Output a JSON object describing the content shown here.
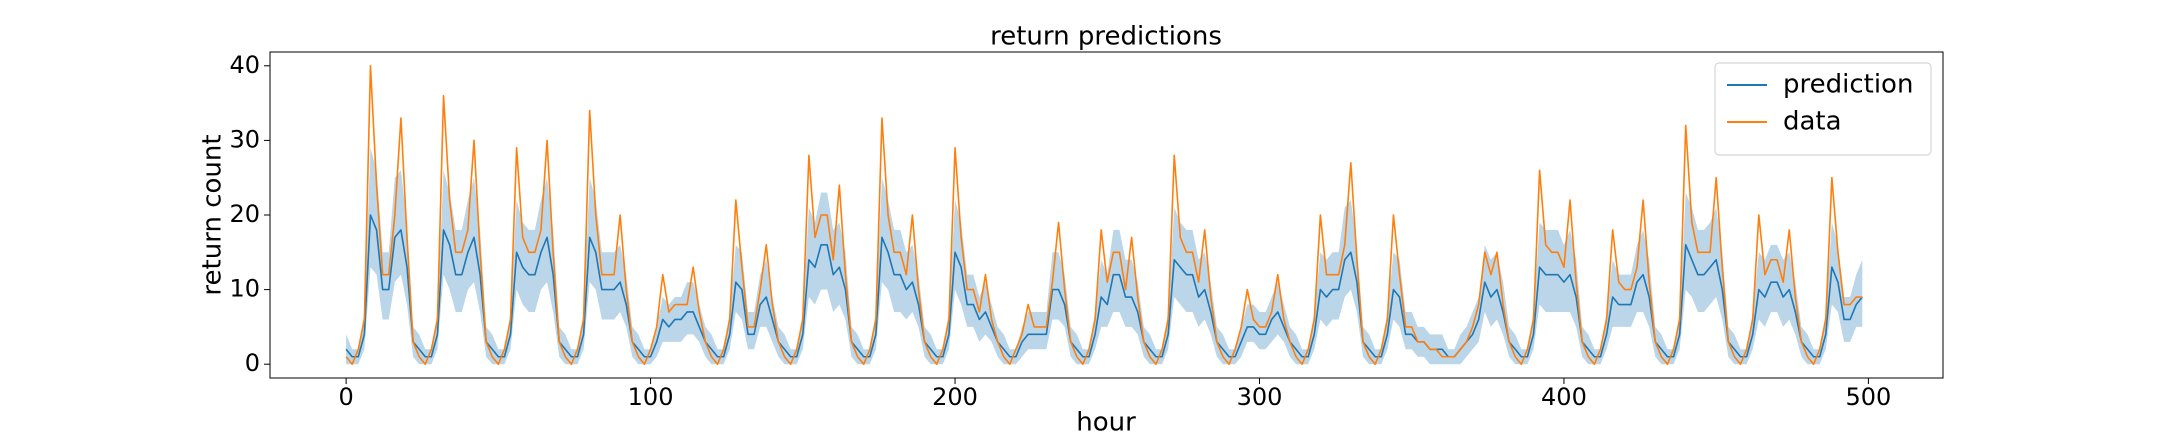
{
  "chart_data": {
    "type": "line",
    "title": "return predictions",
    "xlabel": "hour",
    "ylabel": "return count",
    "xlim": [
      -25,
      524.5
    ],
    "ylim": [
      -1.85,
      41.85
    ],
    "xticks": [
      0,
      100,
      200,
      300,
      400,
      500
    ],
    "yticks": [
      0,
      10,
      20,
      30,
      40
    ],
    "legend": "upper right",
    "x": [
      0,
      2,
      4,
      6,
      8,
      10,
      12,
      14,
      16,
      18,
      20,
      22,
      24,
      26,
      28,
      30,
      32,
      34,
      36,
      38,
      40,
      42,
      44,
      46,
      48,
      50,
      52,
      54,
      56,
      58,
      60,
      62,
      64,
      66,
      68,
      70,
      72,
      74,
      76,
      78,
      80,
      82,
      84,
      86,
      88,
      90,
      92,
      94,
      96,
      98,
      100,
      102,
      104,
      106,
      108,
      110,
      112,
      114,
      116,
      118,
      120,
      122,
      124,
      126,
      128,
      130,
      132,
      134,
      136,
      138,
      140,
      142,
      144,
      146,
      148,
      150,
      152,
      154,
      156,
      158,
      160,
      162,
      164,
      166,
      168,
      170,
      172,
      174,
      176,
      178,
      180,
      182,
      184,
      186,
      188,
      190,
      192,
      194,
      196,
      198,
      200,
      202,
      204,
      206,
      208,
      210,
      212,
      214,
      216,
      218,
      220,
      222,
      224,
      226,
      228,
      230,
      232,
      234,
      236,
      238,
      240,
      242,
      244,
      246,
      248,
      250,
      252,
      254,
      256,
      258,
      260,
      262,
      264,
      266,
      268,
      270,
      272,
      274,
      276,
      278,
      280,
      282,
      284,
      286,
      288,
      290,
      292,
      294,
      296,
      298,
      300,
      302,
      304,
      306,
      308,
      310,
      312,
      314,
      316,
      318,
      320,
      322,
      324,
      326,
      328,
      330,
      332,
      334,
      336,
      338,
      340,
      342,
      344,
      346,
      348,
      350,
      352,
      354,
      356,
      358,
      360,
      362,
      364,
      366,
      368,
      370,
      372,
      374,
      376,
      378,
      380,
      382,
      384,
      386,
      388,
      390,
      392,
      394,
      396,
      398,
      400,
      402,
      404,
      406,
      408,
      410,
      412,
      414,
      416,
      418,
      420,
      422,
      424,
      426,
      428,
      430,
      432,
      434,
      436,
      438,
      440,
      442,
      444,
      446,
      448,
      450,
      452,
      454,
      456,
      458,
      460,
      462,
      464,
      466,
      468,
      470,
      472,
      474,
      476,
      478,
      480,
      482,
      484,
      486,
      488,
      490,
      492,
      494,
      496,
      498
    ],
    "series": [
      {
        "name": "prediction",
        "color": "#1f77b4",
        "values": [
          2,
          1,
          1,
          4,
          20,
          18,
          10,
          10,
          17,
          18,
          13,
          3,
          2,
          1,
          1,
          4,
          18,
          16,
          12,
          12,
          15,
          17,
          12,
          3,
          2,
          1,
          1,
          4,
          15,
          13,
          12,
          12,
          15,
          17,
          12,
          3,
          2,
          1,
          1,
          4,
          17,
          15,
          10,
          10,
          10,
          11,
          8,
          3,
          2,
          1,
          1,
          3,
          6,
          5,
          6,
          6,
          7,
          7,
          5,
          3,
          2,
          1,
          1,
          4,
          11,
          10,
          4,
          4,
          8,
          9,
          6,
          3,
          2,
          1,
          1,
          4,
          14,
          13,
          16,
          16,
          12,
          13,
          10,
          3,
          2,
          1,
          1,
          4,
          17,
          15,
          12,
          12,
          10,
          11,
          8,
          3,
          2,
          1,
          1,
          4,
          15,
          13,
          8,
          8,
          6,
          7,
          5,
          3,
          2,
          1,
          1,
          3,
          4,
          4,
          4,
          4,
          10,
          10,
          8,
          3,
          2,
          1,
          1,
          4,
          9,
          8,
          12,
          12,
          9,
          9,
          7,
          3,
          2,
          1,
          1,
          4,
          14,
          13,
          12,
          12,
          9,
          10,
          7,
          3,
          2,
          1,
          1,
          3,
          5,
          5,
          4,
          4,
          6,
          7,
          5,
          3,
          2,
          1,
          1,
          4,
          10,
          9,
          10,
          10,
          14,
          15,
          11,
          3,
          2,
          1,
          1,
          4,
          10,
          9,
          4,
          4,
          3,
          3,
          2,
          2,
          2,
          1,
          1,
          2,
          3,
          4,
          6,
          11,
          9,
          10,
          7,
          3,
          2,
          1,
          1,
          4,
          13,
          12,
          12,
          12,
          11,
          12,
          9,
          3,
          2,
          1,
          1,
          4,
          9,
          8,
          8,
          8,
          11,
          12,
          9,
          3,
          2,
          1,
          1,
          4,
          16,
          14,
          12,
          12,
          13,
          14,
          10,
          3,
          2,
          1,
          1,
          4,
          10,
          9,
          11,
          11,
          9,
          10,
          7,
          3,
          2,
          1,
          1,
          4,
          13,
          11,
          6,
          6,
          8,
          9
        ]
      },
      {
        "name": "data",
        "color": "#ff7f0e",
        "values": [
          1,
          0,
          2,
          6,
          40,
          24,
          12,
          12,
          20,
          33,
          17,
          3,
          1,
          0,
          2,
          6,
          36,
          22,
          15,
          15,
          18,
          30,
          15,
          3,
          1,
          0,
          2,
          6,
          29,
          17,
          15,
          15,
          18,
          30,
          15,
          3,
          1,
          0,
          2,
          6,
          34,
          20,
          12,
          12,
          12,
          20,
          10,
          3,
          1,
          0,
          2,
          5,
          12,
          7,
          8,
          8,
          8,
          13,
          7,
          3,
          1,
          0,
          2,
          6,
          22,
          13,
          5,
          5,
          10,
          16,
          8,
          3,
          1,
          0,
          2,
          6,
          28,
          17,
          20,
          20,
          14,
          24,
          12,
          3,
          1,
          0,
          2,
          6,
          33,
          20,
          15,
          15,
          12,
          20,
          10,
          3,
          1,
          0,
          2,
          6,
          29,
          17,
          10,
          10,
          7,
          12,
          6,
          3,
          1,
          0,
          2,
          4,
          8,
          5,
          5,
          5,
          11,
          19,
          10,
          3,
          1,
          0,
          2,
          6,
          18,
          11,
          15,
          15,
          10,
          17,
          9,
          3,
          1,
          0,
          2,
          6,
          28,
          17,
          15,
          15,
          11,
          18,
          9,
          3,
          1,
          0,
          2,
          5,
          10,
          6,
          5,
          5,
          7,
          12,
          6,
          3,
          1,
          0,
          2,
          6,
          20,
          12,
          12,
          12,
          16,
          27,
          14,
          3,
          1,
          0,
          2,
          6,
          20,
          12,
          5,
          5,
          3,
          3,
          2,
          2,
          1,
          1,
          1,
          2,
          3,
          5,
          8,
          15,
          12,
          15,
          8,
          3,
          1,
          0,
          2,
          6,
          26,
          16,
          15,
          15,
          13,
          22,
          11,
          3,
          1,
          0,
          2,
          6,
          18,
          11,
          10,
          10,
          13,
          22,
          11,
          3,
          1,
          0,
          2,
          6,
          32,
          19,
          15,
          15,
          15,
          25,
          13,
          3,
          1,
          0,
          2,
          6,
          20,
          12,
          14,
          14,
          11,
          18,
          9,
          3,
          1,
          0,
          2,
          6,
          25,
          15,
          8,
          8,
          9,
          9
        ]
      }
    ],
    "band": {
      "color": "#1f77b4",
      "lower": [
        0,
        0,
        0,
        2,
        13,
        12,
        6,
        6,
        11,
        12,
        8,
        1,
        0,
        0,
        0,
        2,
        12,
        10,
        7,
        7,
        10,
        11,
        7,
        1,
        0,
        0,
        0,
        2,
        10,
        8,
        7,
        7,
        10,
        11,
        7,
        1,
        0,
        0,
        0,
        2,
        11,
        10,
        6,
        6,
        6,
        7,
        5,
        1,
        0,
        0,
        0,
        1,
        3,
        3,
        3,
        3,
        4,
        4,
        3,
        1,
        0,
        0,
        0,
        2,
        7,
        6,
        2,
        2,
        5,
        5,
        3,
        1,
        0,
        0,
        0,
        2,
        9,
        8,
        10,
        10,
        7,
        8,
        6,
        1,
        0,
        0,
        0,
        2,
        11,
        10,
        7,
        7,
        6,
        7,
        5,
        1,
        0,
        0,
        0,
        2,
        10,
        8,
        5,
        5,
        3,
        4,
        3,
        1,
        0,
        0,
        0,
        1,
        2,
        2,
        2,
        2,
        6,
        6,
        5,
        1,
        0,
        0,
        0,
        2,
        5,
        5,
        7,
        7,
        5,
        5,
        4,
        1,
        0,
        0,
        0,
        2,
        9,
        8,
        7,
        7,
        5,
        6,
        4,
        1,
        0,
        0,
        0,
        1,
        3,
        3,
        2,
        2,
        3,
        4,
        3,
        1,
        0,
        0,
        0,
        2,
        6,
        5,
        6,
        6,
        9,
        10,
        7,
        1,
        0,
        0,
        0,
        2,
        6,
        5,
        2,
        2,
        1,
        1,
        0,
        0,
        0,
        0,
        0,
        0,
        1,
        2,
        3,
        7,
        5,
        6,
        4,
        1,
        0,
        0,
        0,
        2,
        8,
        7,
        7,
        7,
        7,
        7,
        5,
        1,
        0,
        0,
        0,
        2,
        5,
        5,
        5,
        5,
        7,
        7,
        5,
        1,
        0,
        0,
        0,
        2,
        10,
        9,
        7,
        7,
        8,
        9,
        6,
        1,
        0,
        0,
        0,
        2,
        6,
        5,
        7,
        7,
        5,
        6,
        4,
        1,
        0,
        0,
        0,
        2,
        8,
        7,
        3,
        3,
        5,
        5
      ],
      "upper": [
        4,
        2,
        2,
        7,
        29,
        26,
        15,
        15,
        25,
        26,
        19,
        5,
        4,
        2,
        2,
        7,
        26,
        23,
        18,
        18,
        22,
        25,
        18,
        5,
        4,
        2,
        2,
        7,
        22,
        19,
        18,
        18,
        22,
        25,
        18,
        5,
        4,
        2,
        2,
        7,
        25,
        22,
        15,
        15,
        15,
        16,
        12,
        5,
        4,
        2,
        2,
        5,
        9,
        8,
        9,
        9,
        11,
        11,
        8,
        5,
        4,
        2,
        2,
        7,
        16,
        15,
        7,
        7,
        12,
        14,
        9,
        5,
        4,
        2,
        2,
        7,
        21,
        19,
        23,
        23,
        18,
        19,
        15,
        5,
        4,
        2,
        2,
        7,
        25,
        22,
        18,
        18,
        15,
        16,
        12,
        5,
        4,
        2,
        2,
        7,
        22,
        19,
        12,
        12,
        9,
        11,
        8,
        5,
        4,
        2,
        2,
        5,
        7,
        7,
        7,
        7,
        15,
        15,
        12,
        5,
        4,
        2,
        2,
        7,
        14,
        12,
        18,
        18,
        14,
        14,
        11,
        5,
        4,
        2,
        2,
        7,
        21,
        19,
        18,
        18,
        14,
        15,
        11,
        5,
        4,
        2,
        2,
        5,
        8,
        8,
        7,
        7,
        9,
        11,
        8,
        5,
        4,
        2,
        2,
        7,
        15,
        14,
        15,
        15,
        21,
        22,
        16,
        5,
        4,
        2,
        2,
        7,
        15,
        14,
        7,
        7,
        5,
        5,
        4,
        4,
        4,
        2,
        2,
        4,
        5,
        7,
        9,
        16,
        14,
        15,
        11,
        5,
        4,
        2,
        2,
        7,
        19,
        18,
        18,
        18,
        16,
        18,
        14,
        5,
        4,
        2,
        2,
        7,
        14,
        12,
        12,
        12,
        16,
        18,
        14,
        5,
        4,
        2,
        2,
        7,
        23,
        21,
        18,
        18,
        19,
        21,
        15,
        5,
        4,
        2,
        2,
        7,
        15,
        14,
        16,
        16,
        14,
        15,
        11,
        5,
        4,
        2,
        2,
        7,
        19,
        16,
        9,
        9,
        12,
        14
      ]
    }
  }
}
